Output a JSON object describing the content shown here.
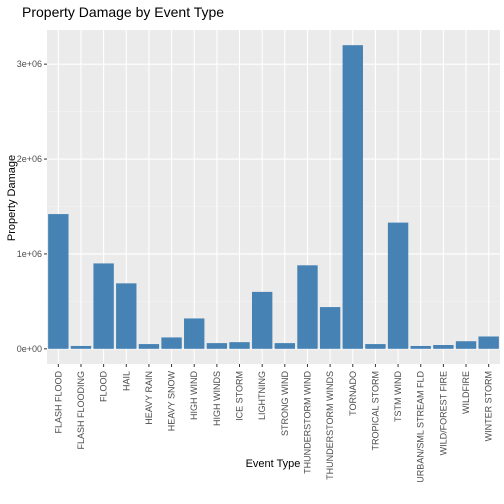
{
  "chart_data": {
    "type": "bar",
    "title": "Property Damage by Event Type",
    "xlabel": "Event Type",
    "ylabel": "Property Damage",
    "categories": [
      "FLASH FLOOD",
      "FLASH FLOODING",
      "FLOOD",
      "HAIL",
      "HEAVY RAIN",
      "HEAVY SNOW",
      "HIGH WIND",
      "HIGH WINDS",
      "ICE STORM",
      "LIGHTNING",
      "STRONG WIND",
      "THUNDERSTORM WIND",
      "THUNDERSTORM WINDS",
      "TORNADO",
      "TROPICAL STORM",
      "TSTM WIND",
      "URBAN/SML STREAM FLD",
      "WILD/FOREST FIRE",
      "WILDFIRE",
      "WINTER STORM"
    ],
    "values": [
      1420000,
      30000,
      900000,
      690000,
      50000,
      120000,
      320000,
      60000,
      70000,
      600000,
      60000,
      880000,
      440000,
      3200000,
      50000,
      1330000,
      30000,
      40000,
      80000,
      130000
    ],
    "yticks": [
      0,
      1000000,
      2000000,
      3000000
    ],
    "ytick_labels": [
      "0e+00",
      "1e+06",
      "2e+06",
      "3e+06"
    ],
    "ylim": [
      -160000,
      3360000
    ],
    "bar_color": "#4682B4",
    "panel_background": "#EBEBEB",
    "grid": true
  }
}
